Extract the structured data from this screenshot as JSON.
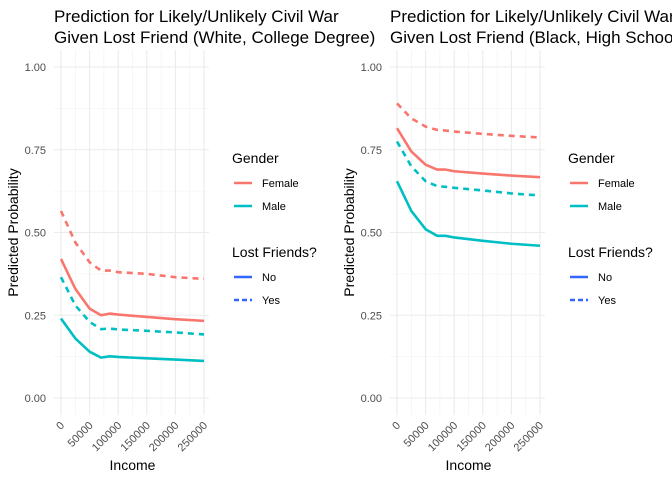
{
  "chart_data": [
    {
      "type": "line",
      "title": "Prediction for Likely/Unlikely Civil War\nGiven Lost Friend (White, College Degree)",
      "xlabel": "Income",
      "ylabel": "Predicted Probability",
      "xlim": [
        0,
        250000
      ],
      "ylim": [
        0,
        1
      ],
      "x_ticks": [
        "0",
        "50000",
        "100000",
        "150000",
        "200000",
        "250000"
      ],
      "y_ticks": [
        "0.00",
        "0.25",
        "0.50",
        "0.75",
        "1.00"
      ],
      "grid": true,
      "x": [
        0,
        25000,
        50000,
        70000,
        85000,
        100000,
        150000,
        200000,
        250000
      ],
      "series": [
        {
          "gender": "Female",
          "lost": "No",
          "color": "#F8766D",
          "dash": "solid",
          "values": [
            0.42,
            0.33,
            0.27,
            0.25,
            0.255,
            0.252,
            0.245,
            0.238,
            0.233
          ]
        },
        {
          "gender": "Female",
          "lost": "Yes",
          "color": "#F8766D",
          "dash": "dashed",
          "values": [
            0.565,
            0.47,
            0.41,
            0.385,
            0.385,
            0.38,
            0.375,
            0.365,
            0.36
          ]
        },
        {
          "gender": "Male",
          "lost": "No",
          "color": "#00BFC4",
          "dash": "solid",
          "values": [
            0.24,
            0.18,
            0.14,
            0.122,
            0.126,
            0.124,
            0.12,
            0.116,
            0.112
          ]
        },
        {
          "gender": "Male",
          "lost": "Yes",
          "color": "#00BFC4",
          "dash": "dashed",
          "values": [
            0.365,
            0.28,
            0.23,
            0.208,
            0.21,
            0.207,
            0.203,
            0.198,
            0.192
          ]
        }
      ],
      "legend": {
        "placement": "right",
        "groups": [
          {
            "title": "Gender",
            "items": [
              {
                "label": "Female",
                "color": "#F8766D",
                "dash": "solid"
              },
              {
                "label": "Male",
                "color": "#00BFC4",
                "dash": "solid"
              }
            ]
          },
          {
            "title": "Lost Friends?",
            "items": [
              {
                "label": "No",
                "color": "#3366FF",
                "dash": "solid"
              },
              {
                "label": "Yes",
                "color": "#3366FF",
                "dash": "dashed"
              }
            ]
          }
        ]
      }
    },
    {
      "type": "line",
      "title": "Prediction for Likely/Unlikely Civil War\nGiven Lost Friend (Black, High School)",
      "xlabel": "Income",
      "ylabel": "Predicted Probability",
      "xlim": [
        0,
        250000
      ],
      "ylim": [
        0,
        1
      ],
      "x_ticks": [
        "0",
        "50000",
        "100000",
        "150000",
        "200000",
        "250000"
      ],
      "y_ticks": [
        "0.00",
        "0.25",
        "0.50",
        "0.75",
        "1.00"
      ],
      "grid": true,
      "x": [
        0,
        25000,
        50000,
        70000,
        85000,
        100000,
        150000,
        200000,
        250000
      ],
      "series": [
        {
          "gender": "Female",
          "lost": "No",
          "color": "#F8766D",
          "dash": "solid",
          "values": [
            0.815,
            0.745,
            0.705,
            0.69,
            0.69,
            0.685,
            0.678,
            0.672,
            0.667
          ]
        },
        {
          "gender": "Female",
          "lost": "Yes",
          "color": "#F8766D",
          "dash": "dashed",
          "values": [
            0.89,
            0.845,
            0.82,
            0.81,
            0.808,
            0.805,
            0.798,
            0.792,
            0.787
          ]
        },
        {
          "gender": "Male",
          "lost": "No",
          "color": "#00BFC4",
          "dash": "solid",
          "values": [
            0.655,
            0.565,
            0.51,
            0.49,
            0.49,
            0.485,
            0.475,
            0.466,
            0.46
          ]
        },
        {
          "gender": "Male",
          "lost": "Yes",
          "color": "#00BFC4",
          "dash": "dashed",
          "values": [
            0.775,
            0.7,
            0.655,
            0.64,
            0.638,
            0.635,
            0.627,
            0.618,
            0.612
          ]
        }
      ],
      "legend": {
        "placement": "right",
        "groups": [
          {
            "title": "Gender",
            "items": [
              {
                "label": "Female",
                "color": "#F8766D",
                "dash": "solid"
              },
              {
                "label": "Male",
                "color": "#00BFC4",
                "dash": "solid"
              }
            ]
          },
          {
            "title": "Lost Friends?",
            "items": [
              {
                "label": "No",
                "color": "#3366FF",
                "dash": "solid"
              },
              {
                "label": "Yes",
                "color": "#3366FF",
                "dash": "dashed"
              }
            ]
          }
        ]
      }
    }
  ]
}
